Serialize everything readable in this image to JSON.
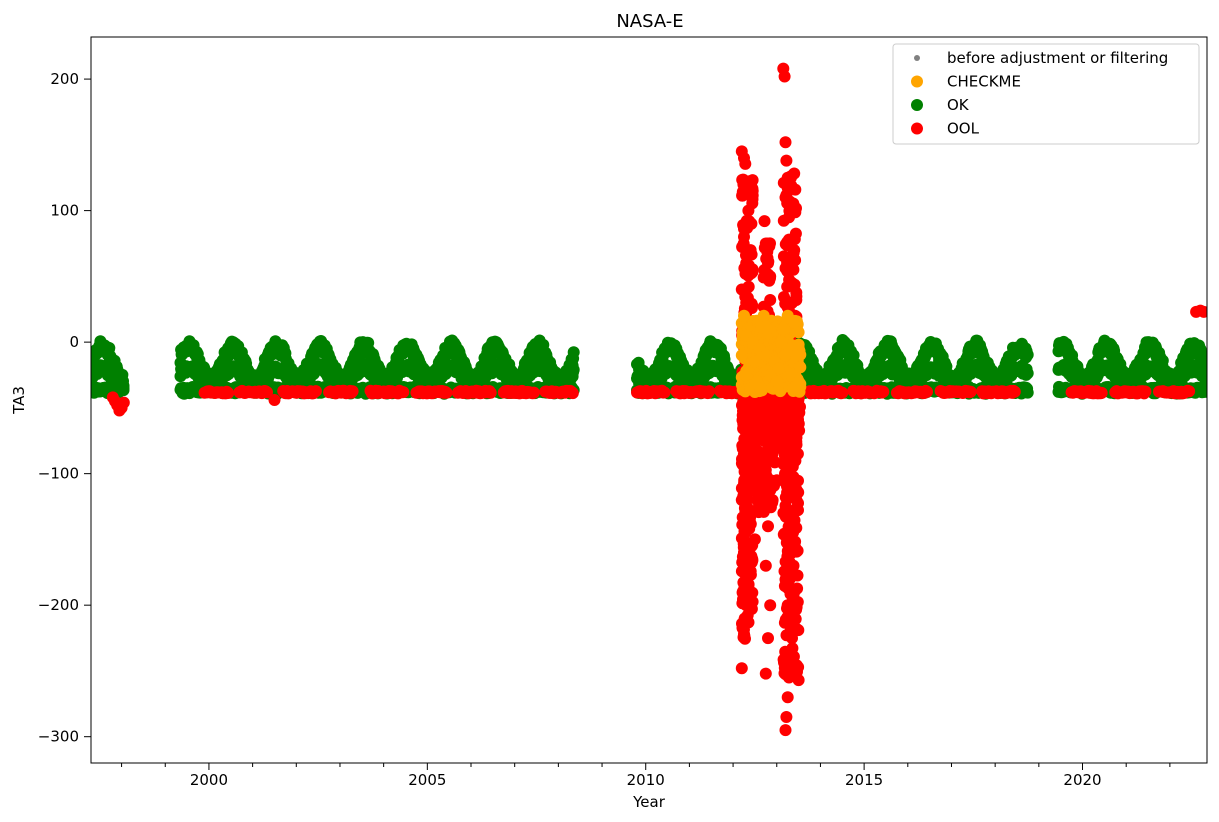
{
  "chart_data": {
    "type": "scatter",
    "title": "NASA-E",
    "xlabel": "Year",
    "ylabel": "TA3",
    "xlim": [
      1997.3,
      2022.85
    ],
    "ylim": [
      -320,
      232
    ],
    "xticks": [
      2000,
      2005,
      2010,
      2015,
      2020
    ],
    "xtick_labels": [
      "2000",
      "2005",
      "2010",
      "2015",
      "2020"
    ],
    "yticks": [
      -300,
      -200,
      -100,
      0,
      100,
      200
    ],
    "ytick_labels": [
      "−300",
      "−200",
      "−100",
      "0",
      "100",
      "200"
    ],
    "grid": false,
    "legend": "top-right",
    "series": [
      {
        "name": "before adjustment or filtering",
        "color": "#808080",
        "marker": "small-dot",
        "points": []
      },
      {
        "name": "CHECKME",
        "color": "#ffa500",
        "points": [
          [
            2012.2,
            -10
          ],
          [
            2012.25,
            20
          ],
          [
            2012.3,
            5
          ],
          [
            2012.35,
            -20
          ],
          [
            2012.4,
            -35
          ],
          [
            2012.45,
            0
          ],
          [
            2012.5,
            -15
          ],
          [
            2012.55,
            -30
          ],
          [
            2012.6,
            -5
          ],
          [
            2012.65,
            15
          ],
          [
            2012.7,
            20
          ],
          [
            2012.75,
            -10
          ],
          [
            2012.8,
            10
          ],
          [
            2012.85,
            -25
          ],
          [
            2012.9,
            -35
          ],
          [
            2012.95,
            -15
          ],
          [
            2013.0,
            -30
          ],
          [
            2013.05,
            -20
          ],
          [
            2013.1,
            0
          ],
          [
            2013.15,
            10
          ],
          [
            2013.2,
            -10
          ],
          [
            2013.25,
            20
          ],
          [
            2013.3,
            -5
          ],
          [
            2013.35,
            -25
          ],
          [
            2013.4,
            15
          ],
          [
            2013.45,
            -10
          ],
          [
            2013.5,
            -30
          ],
          [
            2012.28,
            -25
          ],
          [
            2012.62,
            -35
          ],
          [
            2013.38,
            -35
          ]
        ]
      },
      {
        "name": "OK",
        "color": "#008000",
        "segments": [
          {
            "x": [
              1997.3,
              1998.05
            ],
            "peak": 1
          },
          {
            "x": [
              1999.35,
              2008.35
            ],
            "peak": 7
          },
          {
            "x": [
              2009.8,
              2012.2
            ],
            "peak": 0
          },
          {
            "x": [
              2013.5,
              2018.75
            ],
            "peak": 2
          },
          {
            "x": [
              2019.45,
              2022.85
            ],
            "peak": 3
          }
        ]
      },
      {
        "name": "OOL",
        "color": "#ff0000",
        "points": [
          [
            1997.8,
            -42
          ],
          [
            1997.85,
            -45
          ],
          [
            1997.9,
            -48
          ],
          [
            1997.95,
            -52
          ],
          [
            1998.0,
            -50
          ],
          [
            1998.05,
            -46
          ],
          [
            2001.5,
            -44
          ],
          [
            2012.2,
            145
          ],
          [
            2012.25,
            140
          ],
          [
            2012.3,
            120
          ],
          [
            2012.35,
            100
          ],
          [
            2012.25,
            80
          ],
          [
            2012.3,
            60
          ],
          [
            2012.2,
            40
          ],
          [
            2012.3,
            20
          ],
          [
            2012.45,
            115
          ],
          [
            2012.42,
            90
          ],
          [
            2012.4,
            70
          ],
          [
            2012.2,
            -248
          ],
          [
            2012.25,
            -222
          ],
          [
            2012.3,
            -200
          ],
          [
            2012.35,
            -185
          ],
          [
            2012.25,
            -160
          ],
          [
            2012.3,
            -140
          ],
          [
            2012.2,
            -120
          ],
          [
            2012.35,
            -100
          ],
          [
            2012.3,
            -80
          ],
          [
            2012.25,
            -60
          ],
          [
            2012.5,
            -150
          ],
          [
            2012.55,
            -120
          ],
          [
            2012.6,
            -90
          ],
          [
            2012.65,
            -70
          ],
          [
            2012.7,
            -55
          ],
          [
            2012.75,
            -252
          ],
          [
            2012.8,
            -225
          ],
          [
            2012.85,
            -200
          ],
          [
            2012.75,
            -170
          ],
          [
            2012.8,
            -140
          ],
          [
            2012.72,
            92
          ],
          [
            2012.75,
            75
          ],
          [
            2012.8,
            60
          ],
          [
            2012.85,
            50
          ],
          [
            2012.85,
            32
          ],
          [
            2013.0,
            -105
          ],
          [
            2013.05,
            -80
          ],
          [
            2013.1,
            -60
          ],
          [
            2013.15,
            208
          ],
          [
            2013.18,
            202
          ],
          [
            2013.2,
            152
          ],
          [
            2013.22,
            138
          ],
          [
            2013.25,
            125
          ],
          [
            2013.2,
            110
          ],
          [
            2013.28,
            95
          ],
          [
            2013.3,
            75
          ],
          [
            2013.25,
            60
          ],
          [
            2013.35,
            45
          ],
          [
            2013.3,
            30
          ],
          [
            2013.4,
            70
          ],
          [
            2013.38,
            55
          ],
          [
            2013.42,
            20
          ],
          [
            2013.2,
            -295
          ],
          [
            2013.22,
            -285
          ],
          [
            2013.25,
            -270
          ],
          [
            2013.28,
            -255
          ],
          [
            2013.3,
            -240
          ],
          [
            2013.35,
            -225
          ],
          [
            2013.4,
            -210
          ],
          [
            2013.25,
            -200
          ],
          [
            2013.3,
            -180
          ],
          [
            2013.35,
            -160
          ],
          [
            2013.4,
            -140
          ],
          [
            2013.45,
            -120
          ],
          [
            2013.3,
            -100
          ],
          [
            2013.35,
            -80
          ],
          [
            2013.4,
            -60
          ],
          [
            2013.45,
            -45
          ],
          [
            2022.6,
            23
          ],
          [
            2022.7,
            24
          ],
          [
            2022.78,
            23
          ]
        ],
        "floor_bands": [
          [
            1999.9,
            2000.45
          ],
          [
            2000.7,
            2001.35
          ],
          [
            2001.7,
            2002.45
          ],
          [
            2002.75,
            2003.3
          ],
          [
            2003.7,
            2004.45
          ],
          [
            2004.75,
            2005.45
          ],
          [
            2005.7,
            2006.45
          ],
          [
            2006.75,
            2007.45
          ],
          [
            2007.7,
            2008.35
          ],
          [
            2009.8,
            2010.45
          ],
          [
            2010.7,
            2011.45
          ],
          [
            2011.7,
            2012.2
          ],
          [
            2013.75,
            2014.5
          ],
          [
            2014.75,
            2015.45
          ],
          [
            2015.75,
            2016.45
          ],
          [
            2016.75,
            2017.45
          ],
          [
            2017.7,
            2018.45
          ],
          [
            2019.75,
            2020.45
          ],
          [
            2020.75,
            2021.45
          ],
          [
            2021.75,
            2022.45
          ]
        ]
      }
    ]
  }
}
